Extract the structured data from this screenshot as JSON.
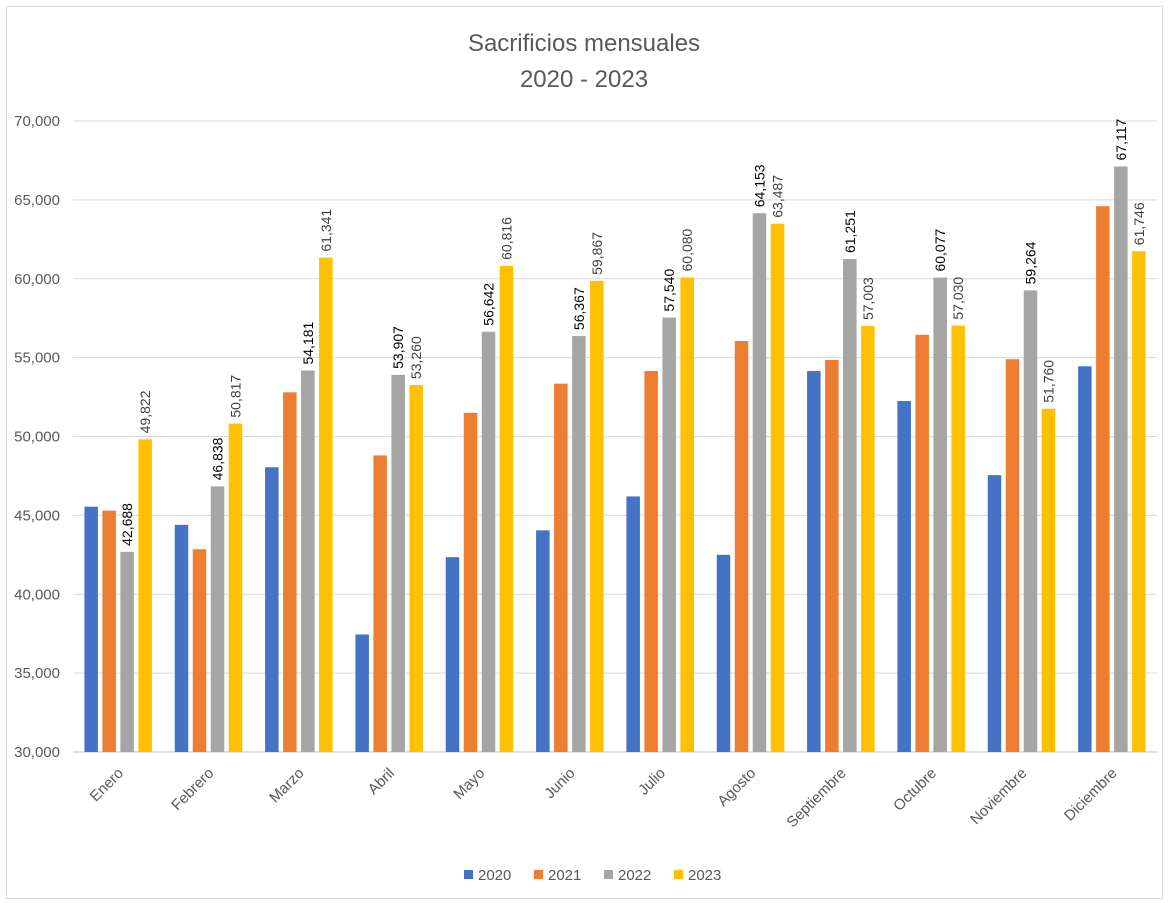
{
  "chart_data": {
    "type": "bar",
    "title": [
      "Sacrificios mensuales",
      "2020 - 2023"
    ],
    "xlabel": "",
    "ylabel": "",
    "ylim": [
      30000,
      70000
    ],
    "ytick_step": 5000,
    "ytick_labels": [
      "30,000",
      "35,000",
      "40,000",
      "45,000",
      "50,000",
      "55,000",
      "60,000",
      "65,000",
      "70,000"
    ],
    "grid": true,
    "legend_position": "bottom",
    "categories": [
      "Enero",
      "Febrero",
      "Marzo",
      "Abril",
      "Mayo",
      "Junio",
      "Julio",
      "Agosto",
      "Septiembre",
      "Octubre",
      "Noviembre",
      "Diciembre"
    ],
    "series": [
      {
        "name": "2020",
        "color": "#4472C4",
        "labeled": false,
        "values": [
          45550,
          44400,
          48050,
          37450,
          42350,
          44050,
          46200,
          42500,
          54150,
          52250,
          47550,
          54450
        ]
      },
      {
        "name": "2021",
        "color": "#ED7D31",
        "labeled": false,
        "values": [
          45300,
          42850,
          52800,
          48800,
          51500,
          53350,
          54150,
          56050,
          54850,
          56450,
          54900,
          64600
        ]
      },
      {
        "name": "2022",
        "color": "#A5A5A5",
        "labeled": true,
        "label_color": "#000000",
        "values": [
          42688,
          46838,
          54181,
          53907,
          56642,
          56367,
          57540,
          64153,
          61251,
          60077,
          59264,
          67117
        ]
      },
      {
        "name": "2023",
        "color": "#FFC000",
        "labeled": true,
        "label_color": "#404040",
        "values": [
          49822,
          50817,
          61341,
          53260,
          60816,
          59867,
          60080,
          63487,
          57003,
          57030,
          51760,
          61746
        ]
      }
    ],
    "data_labels": {
      "2022": [
        "42,688",
        "46,838",
        "54,181",
        "53,907",
        "56,642",
        "56,367",
        "57,540",
        "64,153",
        "61,251",
        "60,077",
        "59,264",
        "67,117"
      ],
      "2023": [
        "49,822",
        "50,817",
        "61,341",
        "53,260",
        "60,816",
        "59,867",
        "60,080",
        "63,487",
        "57,003",
        "57,030",
        "51,760",
        "61,746"
      ]
    }
  }
}
